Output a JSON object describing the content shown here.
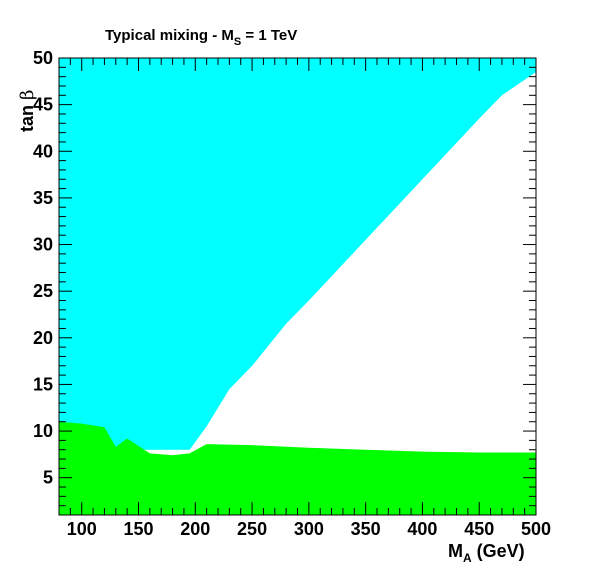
{
  "chart_data": {
    "type": "area",
    "title": {
      "main": "Typical mixing - M",
      "sub": "S",
      "rest": " = 1 TeV"
    },
    "xlabel": {
      "main": "M",
      "sub": "A",
      "rest": "  (GeV)"
    },
    "ylabel": {
      "main": "tan ",
      "greek": "β"
    },
    "xlim": [
      80,
      500
    ],
    "ylim": [
      1,
      50
    ],
    "x_ticks": [
      100,
      150,
      200,
      250,
      300,
      350,
      400,
      450,
      500
    ],
    "y_ticks": [
      5,
      10,
      15,
      20,
      25,
      30,
      35,
      40,
      45,
      50
    ],
    "grid": false,
    "colors": {
      "cyan_region": "#00ffff",
      "green_region": "#00ff00",
      "axes": "#000000",
      "background": "#ffffff"
    },
    "regions": [
      {
        "name": "cyan-region",
        "description_points": [
          [
            80,
            50
          ],
          [
            500,
            50
          ],
          [
            500,
            48.5
          ],
          [
            470,
            46
          ],
          [
            450,
            43.5
          ],
          [
            400,
            37
          ],
          [
            350,
            30.5
          ],
          [
            300,
            24
          ],
          [
            280,
            21.5
          ],
          [
            250,
            17
          ],
          [
            230,
            14.5
          ],
          [
            210,
            10.5
          ],
          [
            195,
            8
          ],
          [
            80,
            8
          ]
        ]
      },
      {
        "name": "green-region",
        "description_points": [
          [
            80,
            1
          ],
          [
            80,
            11
          ],
          [
            100,
            10.8
          ],
          [
            120,
            10.4
          ],
          [
            130,
            8.3
          ],
          [
            140,
            9.2
          ],
          [
            160,
            7.6
          ],
          [
            180,
            7.4
          ],
          [
            195,
            7.6
          ],
          [
            210,
            8.6
          ],
          [
            250,
            8.5
          ],
          [
            300,
            8.2
          ],
          [
            350,
            8.0
          ],
          [
            400,
            7.8
          ],
          [
            450,
            7.7
          ],
          [
            500,
            7.7
          ],
          [
            500,
            1
          ]
        ]
      }
    ]
  }
}
